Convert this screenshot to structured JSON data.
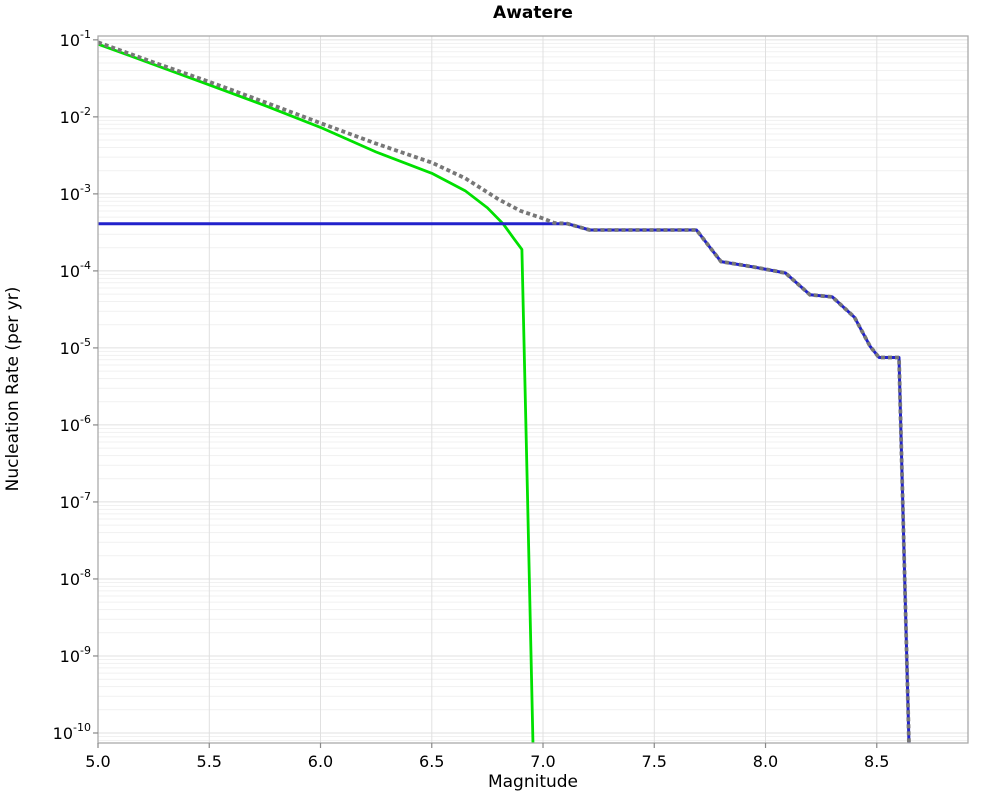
{
  "figure": {
    "background": "#ffffff"
  },
  "chart_data": {
    "type": "line",
    "title": "Awatere",
    "xlabel": "Magnitude",
    "ylabel": "Nucleation Rate (per yr)",
    "x_scale": "linear",
    "y_scale": "log",
    "xlim": [
      5.0,
      8.91
    ],
    "ylim": [
      1e-10,
      0.1
    ],
    "grid": true,
    "legend": "none",
    "colors": {
      "grid_major": "#e0e0e0",
      "grid_minor": "#f1f1f1",
      "border": "#aaaaaa",
      "tick": "#888888",
      "text": "#000000"
    },
    "x_ticks": [
      {
        "value": 5.0,
        "label": "5.0"
      },
      {
        "value": 5.5,
        "label": "5.5"
      },
      {
        "value": 6.0,
        "label": "6.0"
      },
      {
        "value": 6.5,
        "label": "6.5"
      },
      {
        "value": 7.0,
        "label": "7.0"
      },
      {
        "value": 7.5,
        "label": "7.5"
      },
      {
        "value": 8.0,
        "label": "8.0"
      },
      {
        "value": 8.5,
        "label": "8.5"
      }
    ],
    "y_tick_exponents": [
      -1,
      -2,
      -3,
      -4,
      -5,
      -6,
      -7,
      -8,
      -9,
      -10
    ],
    "series": [
      {
        "id": "green-solid",
        "name": "green solid curve (tapered fall-off, plunges near M 6.95)",
        "color": "#00e000",
        "width": 2.8,
        "dash": null,
        "points": [
          [
            5.0,
            0.088
          ],
          [
            5.25,
            0.048
          ],
          [
            5.5,
            0.026
          ],
          [
            5.75,
            0.014
          ],
          [
            6.0,
            0.0073
          ],
          [
            6.25,
            0.0035
          ],
          [
            6.5,
            0.00185
          ],
          [
            6.65,
            0.0011
          ],
          [
            6.75,
            0.00066
          ],
          [
            6.82,
            0.00041
          ],
          [
            6.87,
            0.00026
          ],
          [
            6.905,
            0.00019
          ],
          [
            6.93,
            1.4e-07
          ],
          [
            6.955,
            7e-11
          ]
        ]
      },
      {
        "id": "blue-solid",
        "name": "blue stepped curve (flat floor then descending steps, plunges near M 8.64)",
        "color": "#2222cc",
        "width": 3,
        "dash": null,
        "points": [
          [
            5.0,
            0.00041
          ],
          [
            7.11,
            0.00041
          ],
          [
            7.21,
            0.00034
          ],
          [
            7.69,
            0.00034
          ],
          [
            7.8,
            0.000132
          ],
          [
            7.95,
            0.000112
          ],
          [
            8.09,
            9.4e-05
          ],
          [
            8.2,
            4.9e-05
          ],
          [
            8.3,
            4.6e-05
          ],
          [
            8.4,
            2.5e-05
          ],
          [
            8.47,
            1.05e-05
          ],
          [
            8.51,
            7.5e-06
          ],
          [
            8.6,
            7.5e-06
          ],
          [
            8.645,
            7e-11
          ]
        ]
      },
      {
        "id": "gray-dotted",
        "name": "gray dotted curve (straighter fall-off that merges onto blue steps)",
        "color": "#777777",
        "width": 3.8,
        "dash": "4 3",
        "points": [
          [
            5.0,
            0.093
          ],
          [
            5.25,
            0.051
          ],
          [
            5.5,
            0.0285
          ],
          [
            5.75,
            0.0155
          ],
          [
            6.0,
            0.0083
          ],
          [
            6.25,
            0.0045
          ],
          [
            6.5,
            0.00255
          ],
          [
            6.65,
            0.0016
          ],
          [
            6.8,
            0.00085
          ],
          [
            6.9,
            0.0006
          ],
          [
            7.0,
            0.00048
          ],
          [
            7.05,
            0.00042
          ],
          [
            7.11,
            0.00041
          ],
          [
            7.21,
            0.00034
          ],
          [
            7.69,
            0.00034
          ],
          [
            7.8,
            0.000132
          ],
          [
            7.95,
            0.000112
          ],
          [
            8.09,
            9.4e-05
          ],
          [
            8.2,
            4.9e-05
          ],
          [
            8.3,
            4.6e-05
          ],
          [
            8.4,
            2.5e-05
          ],
          [
            8.47,
            1.05e-05
          ],
          [
            8.51,
            7.5e-06
          ],
          [
            8.6,
            7.5e-06
          ],
          [
            8.645,
            7e-11
          ]
        ]
      }
    ]
  }
}
